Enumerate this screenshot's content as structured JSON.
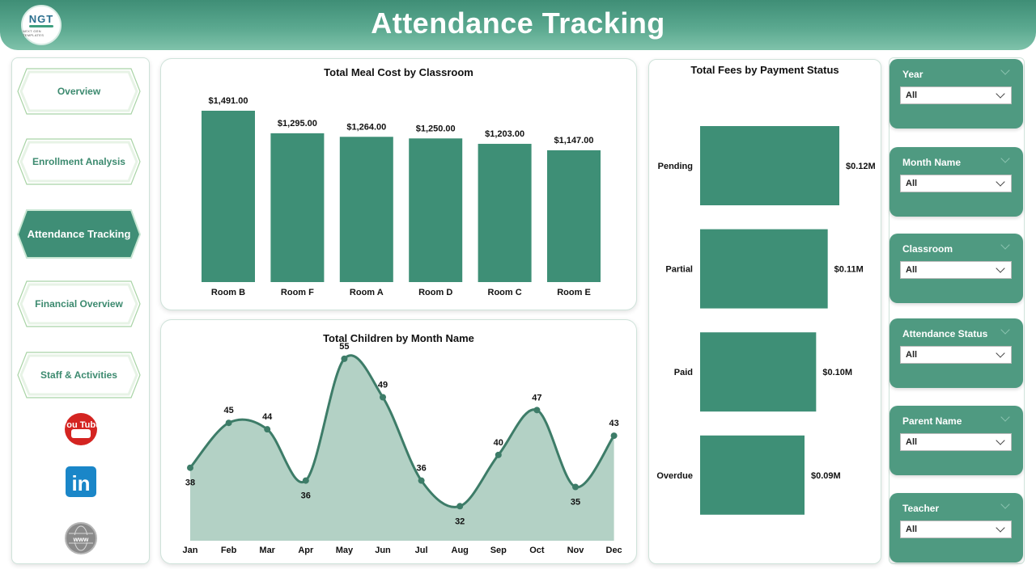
{
  "header": {
    "title": "Attendance Tracking",
    "logo_text": "NGT",
    "logo_subtext": "NEXT GEN TEMPLATES"
  },
  "nav": {
    "items": [
      {
        "label": "Overview",
        "active": false
      },
      {
        "label": "Enrollment Analysis",
        "active": false
      },
      {
        "label": "Attendance Tracking",
        "active": true
      },
      {
        "label": "Financial Overview",
        "active": false
      },
      {
        "label": "Staff & Activities",
        "active": false
      }
    ],
    "social": [
      {
        "icon": "youtube-icon",
        "text": "You Tube"
      },
      {
        "icon": "linkedin-icon",
        "text": "in"
      },
      {
        "icon": "website-icon",
        "text": "www"
      }
    ]
  },
  "colors": {
    "accent": "#3f8e76",
    "bar": "#3e8f76",
    "area_fill": "#b3d1c5",
    "line": "#3d7c68"
  },
  "chart_data": [
    {
      "type": "bar",
      "title": "Total Meal Cost by Classroom",
      "categories": [
        "Room B",
        "Room F",
        "Room A",
        "Room D",
        "Room C",
        "Room E"
      ],
      "values": [
        1491,
        1295,
        1264,
        1250,
        1203,
        1147
      ],
      "value_labels": [
        "$1,491.00",
        "$1,295.00",
        "$1,264.00",
        "$1,250.00",
        "$1,203.00",
        "$1,147.00"
      ],
      "ylim": [
        0,
        1600
      ]
    },
    {
      "type": "area",
      "title": "Total Children by Month Name",
      "categories": [
        "Jan",
        "Feb",
        "Mar",
        "Apr",
        "May",
        "Jun",
        "Jul",
        "Aug",
        "Sep",
        "Oct",
        "Nov",
        "Dec"
      ],
      "values": [
        38,
        45,
        44,
        36,
        55,
        49,
        36,
        32,
        40,
        47,
        35,
        43
      ],
      "ylim": [
        28,
        56
      ]
    },
    {
      "type": "bar",
      "orientation": "horizontal",
      "title": "Total Fees by Payment Status",
      "categories": [
        "Pending",
        "Partial",
        "Paid",
        "Overdue"
      ],
      "values": [
        0.12,
        0.11,
        0.1,
        0.09
      ],
      "value_labels": [
        "$0.12M",
        "$0.11M",
        "$0.10M",
        "$0.09M"
      ],
      "xlim": [
        0,
        0.133
      ]
    }
  ],
  "slicers": [
    {
      "label": "Year",
      "value": "All"
    },
    {
      "label": "Month Name",
      "value": "All"
    },
    {
      "label": "Classroom",
      "value": "All"
    },
    {
      "label": "Attendance Status",
      "value": "All"
    },
    {
      "label": "Parent Name",
      "value": "All"
    },
    {
      "label": "Teacher",
      "value": "All"
    }
  ]
}
